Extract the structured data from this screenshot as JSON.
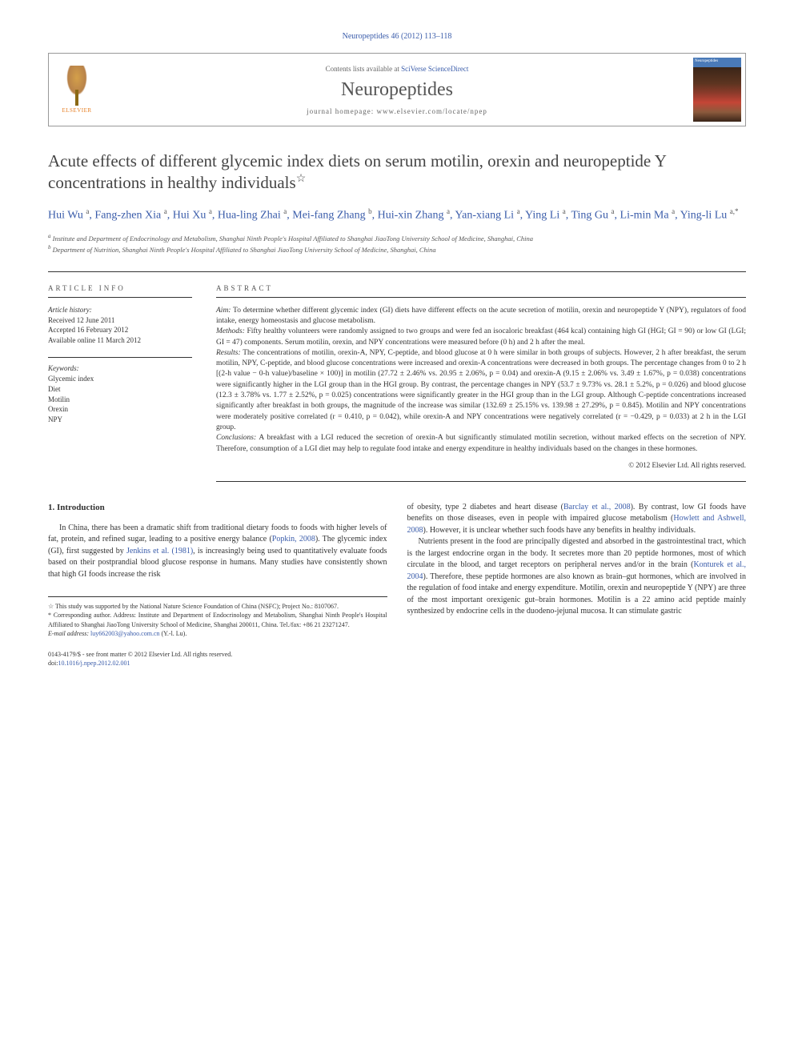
{
  "page_header": "Neuropeptides 46 (2012) 113–118",
  "header": {
    "contents_prefix": "Contents lists available at ",
    "contents_link": "SciVerse ScienceDirect",
    "journal": "Neuropeptides",
    "homepage_prefix": "journal homepage: ",
    "homepage_url": "www.elsevier.com/locate/npep",
    "elsevier": "ELSEVIER",
    "cover_label": "Neuropeptides"
  },
  "title": "Acute effects of different glycemic index diets on serum motilin, orexin and neuropeptide Y concentrations in healthy individuals",
  "title_note": "☆",
  "authors_html": "Hui Wu <sup>a</sup>, Fang-zhen Xia <sup>a</sup>, Hui Xu <sup>a</sup>, Hua-ling Zhai <sup>a</sup>, Mei-fang Zhang <sup>b</sup>, Hui-xin Zhang <sup>a</sup>, Yan-xiang Li <sup>a</sup>, Ying Li <sup>a</sup>, Ting Gu <sup>a</sup>, Li-min Ma <sup>a</sup>, Ying-li Lu <sup>a,*</sup>",
  "affiliations": {
    "a": "Institute and Department of Endocrinology and Metabolism, Shanghai Ninth People's Hospital Affiliated to Shanghai JiaoTong University School of Medicine, Shanghai, China",
    "b": "Department of Nutrition, Shanghai Ninth People's Hospital Affiliated to Shanghai JiaoTong University School of Medicine, Shanghai, China"
  },
  "article_info": {
    "heading": "ARTICLE INFO",
    "history_label": "Article history:",
    "received": "Received 12 June 2011",
    "accepted": "Accepted 16 February 2012",
    "online": "Available online 11 March 2012",
    "keywords_label": "Keywords:",
    "keywords": [
      "Glycemic index",
      "Diet",
      "Motilin",
      "Orexin",
      "NPY"
    ]
  },
  "abstract": {
    "heading": "ABSTRACT",
    "aim_label": "Aim:",
    "aim": " To determine whether different glycemic index (GI) diets have different effects on the acute secretion of motilin, orexin and neuropeptide Y (NPY), regulators of food intake, energy homeostasis and glucose metabolism.",
    "methods_label": "Methods:",
    "methods": " Fifty healthy volunteers were randomly assigned to two groups and were fed an isocaloric breakfast (464 kcal) containing high GI (HGI; GI = 90) or low GI (LGI; GI = 47) components. Serum motilin, orexin, and NPY concentrations were measured before (0 h) and 2 h after the meal.",
    "results_label": "Results:",
    "results": " The concentrations of motilin, orexin-A, NPY, C-peptide, and blood glucose at 0 h were similar in both groups of subjects. However, 2 h after breakfast, the serum motilin, NPY, C-peptide, and blood glucose concentrations were increased and orexin-A concentrations were decreased in both groups. The percentage changes from 0 to 2 h [(2-h value − 0-h value)/baseline × 100)] in motilin (27.72 ± 2.46% vs. 20.95 ± 2.06%, p = 0.04) and orexin-A (9.15 ± 2.06% vs. 3.49 ± 1.67%, p = 0.038) concentrations were significantly higher in the LGI group than in the HGI group. By contrast, the percentage changes in NPY (53.7 ± 9.73% vs. 28.1 ± 5.2%, p = 0.026) and blood glucose (12.3 ± 3.78% vs. 1.77 ± 2.52%, p = 0.025) concentrations were significantly greater in the HGI group than in the LGI group. Although C-peptide concentrations increased significantly after breakfast in both groups, the magnitude of the increase was similar (132.69 ± 25.15% vs. 139.98 ± 27.29%, p = 0.845). Motilin and NPY concentrations were moderately positive correlated (r = 0.410, p = 0.042), while orexin-A and NPY concentrations were negatively correlated (r = −0.429, p = 0.033) at 2 h in the LGI group.",
    "conclusions_label": "Conclusions:",
    "conclusions": " A breakfast with a LGI reduced the secretion of orexin-A but significantly stimulated motilin secretion, without marked effects on the secretion of NPY. Therefore, consumption of a LGI diet may help to regulate food intake and energy expenditure in healthy individuals based on the changes in these hormones.",
    "copyright": "© 2012 Elsevier Ltd. All rights reserved."
  },
  "body": {
    "section1_heading": "1. Introduction",
    "para1_part1": "In China, there has been a dramatic shift from traditional dietary foods to foods with higher levels of fat, protein, and refined sugar, leading to a positive energy balance (",
    "cite1": "Popkin, 2008",
    "para1_part2": "). The glycemic index (GI), first suggested by ",
    "cite2": "Jenkins et al. (1981)",
    "para1_part3": ", is increasingly being used to quantitatively evaluate foods based on their postprandial blood glucose response in humans. Many studies have consistently shown that high GI foods increase the risk",
    "para2_part1": "of obesity, type 2 diabetes and heart disease (",
    "cite3": "Barclay et al., 2008",
    "para2_part2": "). By contrast, low GI foods have benefits on those diseases, even in people with impaired glucose metabolism (",
    "cite4": "Howlett and Ashwell, 2008",
    "para2_part3": "). However, it is unclear whether such foods have any benefits in healthy individuals.",
    "para3_part1": "Nutrients present in the food are principally digested and absorbed in the gastrointestinal tract, which is the largest endocrine organ in the body. It secretes more than 20 peptide hormones, most of which circulate in the blood, and target receptors on peripheral nerves and/or in the brain (",
    "cite5": "Konturek et al., 2004",
    "para3_part2": "). Therefore, these peptide hormones are also known as brain–gut hormones, which are involved in the regulation of food intake and energy expenditure. Motilin, orexin and neuropeptide Y (NPY) are three of the most important orexigenic gut–brain hormones. Motilin is a 22 amino acid peptide mainly synthesized by endocrine cells in the duodeno-jejunal mucosa. It can stimulate gastric"
  },
  "footnotes": {
    "star": "☆ This study was supported by the National Nature Science Foundation of China (NSFC); Project No.: 8107067.",
    "corr": "* Corresponding author. Address: Institute and Department of Endocrinology and Metabolism, Shanghai Ninth People's Hospital Affiliated to Shanghai JiaoTong University School of Medicine, Shanghai 200011, China. Tel./fax: +86 21 23271247.",
    "email_label": "E-mail address: ",
    "email": "luy662003@yahoo.com.cn",
    "email_suffix": " (Y.-l. Lu)."
  },
  "footer": {
    "line1": "0143-4179/$ - see front matter © 2012 Elsevier Ltd. All rights reserved.",
    "doi_label": "doi:",
    "doi": "10.1016/j.npep.2012.02.001"
  }
}
